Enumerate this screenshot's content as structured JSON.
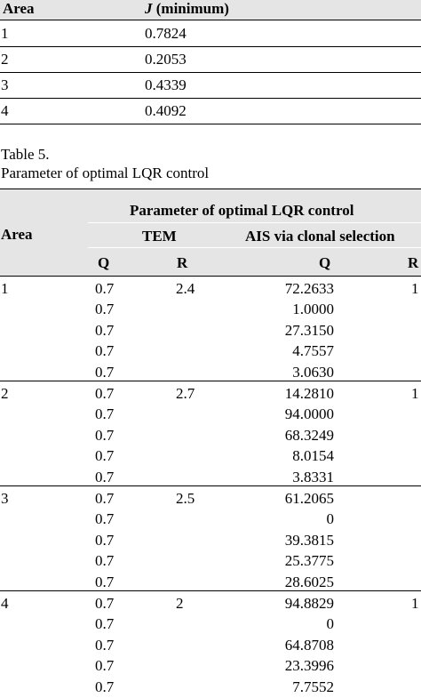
{
  "table4": {
    "headers": {
      "area": "Area",
      "j_symbol": "J",
      "j_rest": "(minimum)"
    },
    "rows": [
      {
        "area": "1",
        "j": "0.7824"
      },
      {
        "area": "2",
        "j": "0.2053"
      },
      {
        "area": "3",
        "j": "0.4339"
      },
      {
        "area": "4",
        "j": "0.4092"
      }
    ]
  },
  "table5": {
    "caption_number": "Table 5.",
    "caption_title": "Parameter of optimal LQR control",
    "headers": {
      "area": "Area",
      "group": "Parameter of optimal LQR control",
      "tem": "TEM",
      "ais": "AIS via clonal selection",
      "q1": "Q",
      "r1": "R",
      "q2": "Q",
      "r2": "R"
    },
    "groups": [
      {
        "area": "1",
        "r_tem": "2.4",
        "r_ais": "1",
        "rows": [
          {
            "q_tem": "0.7",
            "q_ais": "72.2633"
          },
          {
            "q_tem": "0.7",
            "q_ais": "1.0000"
          },
          {
            "q_tem": "0.7",
            "q_ais": "27.3150"
          },
          {
            "q_tem": "0.7",
            "q_ais": "4.7557"
          },
          {
            "q_tem": "0.7",
            "q_ais": "3.0630"
          }
        ]
      },
      {
        "area": "2",
        "r_tem": "2.7",
        "r_ais": "1",
        "rows": [
          {
            "q_tem": "0.7",
            "q_ais": "14.2810"
          },
          {
            "q_tem": "0.7",
            "q_ais": "94.0000"
          },
          {
            "q_tem": "0.7",
            "q_ais": "68.3249"
          },
          {
            "q_tem": "0.7",
            "q_ais": "8.0154"
          },
          {
            "q_tem": "0.7",
            "q_ais": "3.8331"
          }
        ]
      },
      {
        "area": "3",
        "r_tem": "2.5",
        "r_ais": "",
        "rows": [
          {
            "q_tem": "0.7",
            "q_ais": "61.2065"
          },
          {
            "q_tem": "0.7",
            "q_ais": "0"
          },
          {
            "q_tem": "0.7",
            "q_ais": "39.3815"
          },
          {
            "q_tem": "0.7",
            "q_ais": "25.3775"
          },
          {
            "q_tem": "0.7",
            "q_ais": "28.6025"
          }
        ]
      },
      {
        "area": "4",
        "r_tem": "2",
        "r_ais": "1",
        "rows": [
          {
            "q_tem": "0.7",
            "q_ais": "94.8829"
          },
          {
            "q_tem": "0.7",
            "q_ais": "0"
          },
          {
            "q_tem": "0.7",
            "q_ais": "64.8708"
          },
          {
            "q_tem": "0.7",
            "q_ais": "23.3996"
          },
          {
            "q_tem": "0.7",
            "q_ais": "7.7552"
          }
        ]
      }
    ]
  }
}
